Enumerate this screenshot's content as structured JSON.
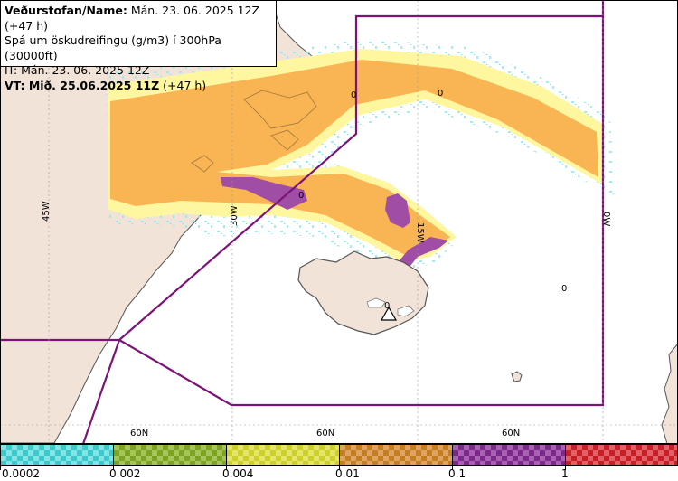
{
  "header": {
    "agency_label": "Veðurstofan/Name:",
    "agency_value": "Mán. 23. 06. 2025 12Z (+47 h)",
    "product": "Spá um öskudreifingu (g/m3) í 300hPa (30000ft)",
    "initial_time": "IT: Mán. 23. 06. 2025 12Z",
    "valid_label": "VT: Mið. 25.06.2025 11Z",
    "valid_suffix": "(+47 h)"
  },
  "map": {
    "grid_labels": {
      "lon_45w": "45W",
      "lon_30w": "30W",
      "lon_15w": "15W",
      "lon_0w": "0W",
      "lat_60n_a": "60N",
      "lat_60n_b": "60N",
      "lat_60n_c": "60N"
    },
    "contour_labels": [
      "0",
      "0",
      "0",
      "0",
      "0"
    ],
    "source_marker": "volcano-triangle",
    "colors": {
      "land": "#f2e3d9",
      "coast": "#555555",
      "fir_boundary": "#7b1378",
      "ash_light": "#fef7a0",
      "ash_orange": "#f9b453",
      "ash_purple": "#a04da6",
      "ash_pink": "#e889b5",
      "speckle": "#9ee7f0"
    }
  },
  "legend": {
    "bins": [
      {
        "label": "0.0002",
        "color": "#3cc9cc",
        "color2": "#84e3e5"
      },
      {
        "label": "0.002",
        "color": "#7da323",
        "color2": "#a7c45a"
      },
      {
        "label": "0.004",
        "color": "#cfcf2a",
        "color2": "#e5e56d"
      },
      {
        "label": "0.01",
        "color": "#c47d22",
        "color2": "#dfa560"
      },
      {
        "label": "0.1",
        "color": "#7c2a8a",
        "color2": "#a861b3"
      },
      {
        "label": "1",
        "color": "#c71f25",
        "color2": "#e26166"
      }
    ]
  }
}
